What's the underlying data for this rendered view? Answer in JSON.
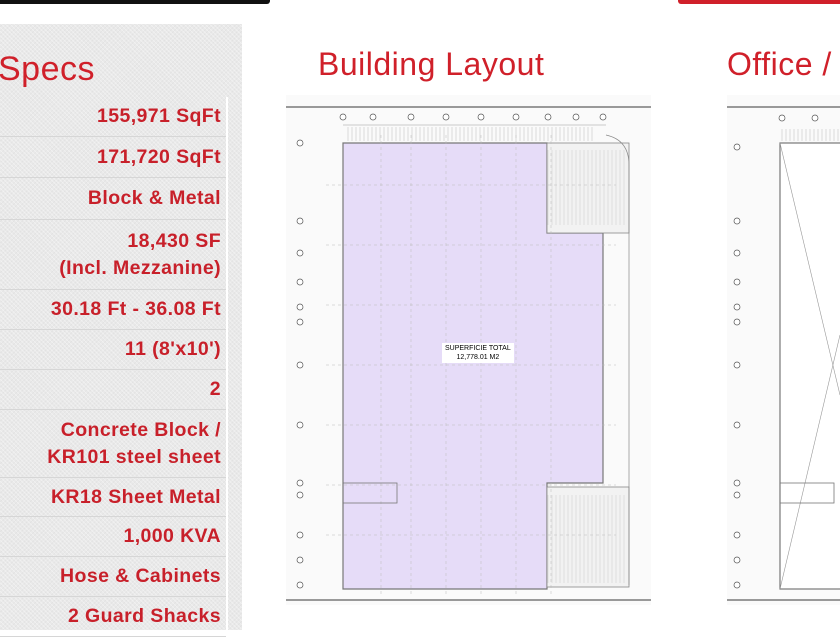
{
  "specs": {
    "title": "Specs",
    "rows": [
      {
        "value": "155,971 SqFt"
      },
      {
        "value": "171,720 SqFt"
      },
      {
        "value": "Block & Metal"
      },
      {
        "value": "18,430 SF\n(Incl. Mezzanine)"
      },
      {
        "value": "30.18 Ft - 36.08 Ft"
      },
      {
        "value": "11 (8'x10')"
      },
      {
        "value": "2"
      },
      {
        "value": "Concrete Block /\nKR101 steel sheet"
      },
      {
        "value": "KR18 Sheet Metal"
      },
      {
        "value": "1,000 KVA"
      },
      {
        "value": "Hose & Cabinets"
      },
      {
        "value": "2 Guard Shacks"
      }
    ]
  },
  "building_layout": {
    "title": "Building Layout",
    "label_line1": "SUPERFICIE TOTAL",
    "label_line2": "12,778.01 M2"
  },
  "office": {
    "title": "Office /"
  },
  "colors": {
    "accent": "#d0202a",
    "floor_area": "#e6dcf8"
  }
}
